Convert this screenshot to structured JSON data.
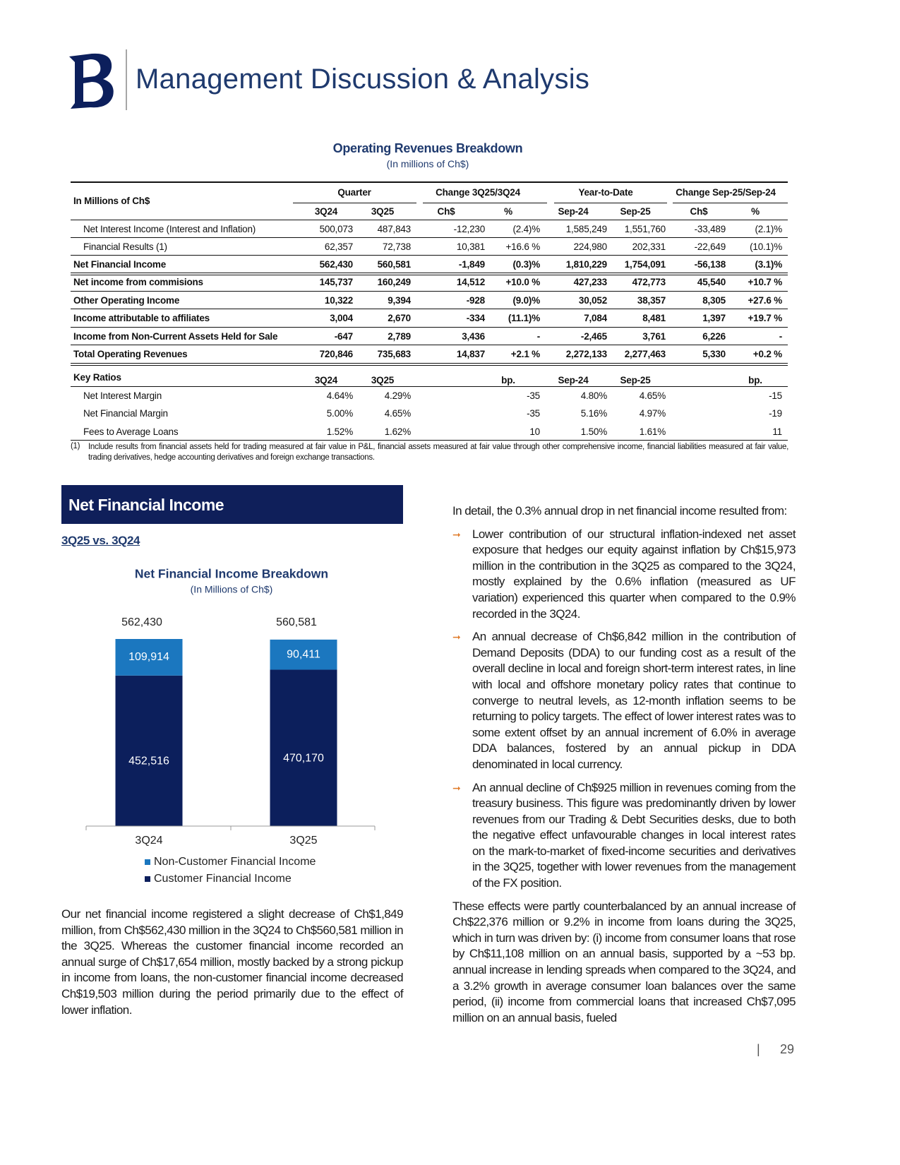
{
  "header": {
    "title": "Management Discussion & Analysis"
  },
  "table": {
    "title": "Operating Revenues Breakdown",
    "subtitle": "(In millions of Ch$)",
    "corner": "In Millions of Ch$",
    "groups": [
      "Quarter",
      "Change 3Q25/3Q24",
      "Year-to-Date",
      "Change Sep-25/Sep-24"
    ],
    "columns": [
      "3Q24",
      "3Q25",
      "Ch$",
      "%",
      "Sep-24",
      "Sep-25",
      "Ch$",
      "%"
    ],
    "rows": [
      [
        "Net Interest Income (Interest and Inflation)",
        "500,073",
        "487,843",
        "-12,230",
        "(2.4)%",
        "1,585,249",
        "1,551,760",
        "-33,489",
        "(2.1)%"
      ],
      [
        "Financial Results (1)",
        "62,357",
        "72,738",
        "10,381",
        "+16.6 %",
        "224,980",
        "202,331",
        "-22,649",
        "(10.1)%"
      ],
      [
        "Net Financial Income",
        "562,430",
        "560,581",
        "-1,849",
        "(0.3)%",
        "1,810,229",
        "1,754,091",
        "-56,138",
        "(3.1)%"
      ],
      [
        "Net income from commisions",
        "145,737",
        "160,249",
        "14,512",
        "+10.0 %",
        "427,233",
        "472,773",
        "45,540",
        "+10.7 %"
      ],
      [
        "Other Operating Income",
        "10,322",
        "9,394",
        "-928",
        "(9.0)%",
        "30,052",
        "38,357",
        "8,305",
        "+27.6 %"
      ],
      [
        "Income attributable to affiliates",
        "3,004",
        "2,670",
        "-334",
        "(11.1)%",
        "7,084",
        "8,481",
        "1,397",
        "+19.7 %"
      ],
      [
        "Income from Non-Current Assets Held for Sale",
        "-647",
        "2,789",
        "3,436",
        "-",
        "-2,465",
        "3,761",
        "6,226",
        "-"
      ],
      [
        "Total Operating Revenues",
        "720,846",
        "735,683",
        "14,837",
        "+2.1 %",
        "2,272,133",
        "2,277,463",
        "5,330",
        "+0.2 %"
      ]
    ],
    "ratios_header": [
      "Key Ratios",
      "3Q24",
      "3Q25",
      null,
      "bp.",
      "Sep-24",
      "Sep-25",
      null,
      "bp."
    ],
    "ratios": [
      [
        "Net Interest Margin",
        "4.64%",
        "4.29%",
        null,
        "-35",
        "4.80%",
        "4.65%",
        null,
        "-15"
      ],
      [
        "Net Financial Margin",
        "5.00%",
        "4.65%",
        null,
        "-35",
        "5.16%",
        "4.97%",
        null,
        "-19"
      ],
      [
        "Fees to Average Loans",
        "1.52%",
        "1.62%",
        null,
        "10",
        "1.50%",
        "1.61%",
        null,
        "11"
      ]
    ],
    "footnote_marker": "(1)",
    "footnote": "Include results from financial assets held for trading measured at fair value in P&L, financial assets measured at fair value through other comprehensive income, financial liabilities measured at fair value, trading derivatives, hedge accounting derivatives and foreign exchange transactions."
  },
  "section": {
    "title": "Net Financial Income",
    "subtitle": "3Q25 vs. 3Q24"
  },
  "chart_data": {
    "type": "bar",
    "stacked": true,
    "title": "Net Financial Income Breakdown",
    "subtitle": "(In Millions of Ch$)",
    "categories": [
      "3Q24",
      "3Q25"
    ],
    "series": [
      {
        "name": "Customer Financial Income",
        "color": "#0c1f5c",
        "values": [
          452516,
          470170
        ],
        "value_labels": [
          "452,516",
          "470,170"
        ]
      },
      {
        "name": "Non-Customer Financial Income",
        "color": "#1b77bf",
        "values": [
          109914,
          90411
        ],
        "value_labels": [
          "109,914",
          "90,411"
        ]
      }
    ],
    "total_labels": [
      "562,430",
      "560,581"
    ]
  },
  "left_text": "Our net financial income registered a slight decrease of Ch$1,849 million, from Ch$562,430 million in the 3Q24 to Ch$560,581 million in the 3Q25. Whereas the customer financial income recorded an annual surge of Ch$17,654 million, mostly backed by a strong pickup in income from loans, the non-customer financial income decreased Ch$19,503 million during the period primarily due to the effect of lower inflation.",
  "right_text": {
    "intro": "In detail, the 0.3% annual drop in net financial income resulted from:",
    "bullets": [
      "Lower contribution of our structural inflation-indexed net asset exposure that hedges our equity against inflation by Ch$15,973 million in the contribution in the 3Q25 as compared to the 3Q24, mostly explained by the 0.6% inflation (measured as UF variation) experienced this quarter when compared to the 0.9% recorded in the 3Q24.",
      "An annual decrease of Ch$6,842 million in the contribution of Demand Deposits (DDA) to our funding cost as a result of the overall decline in local and foreign short-term interest rates, in line with local and offshore monetary policy rates that continue to converge to neutral levels, as 12-month inflation seems to be returning to policy targets. The effect of lower interest rates was to some extent offset by an annual increment of 6.0% in average DDA balances, fostered by an annual pickup in DDA denominated in local currency.",
      "An annual decline of Ch$925 million in revenues coming from the treasury business. This figure was predominantly driven by lower revenues from our Trading & Debt Securities desks, due to both the negative effect unfavourable changes in local interest rates on the mark-to-market of fixed-income securities and derivatives in the 3Q25, together with lower revenues from the management of the FX position."
    ],
    "closing": "These effects were partly counterbalanced by an annual increase of Ch$22,376 million or 9.2% in income from loans during the 3Q25, which in turn was driven by: (i) income from consumer loans that rose by Ch$11,108 million on an annual basis, supported by a ~53 bp. annual increase in lending spreads when compared to the 3Q24, and a 3.2% growth in average consumer loan balances over the same period, (ii) income from commercial loans that increased Ch$7,095 million on an annual basis, fueled"
  },
  "page_number": "29"
}
